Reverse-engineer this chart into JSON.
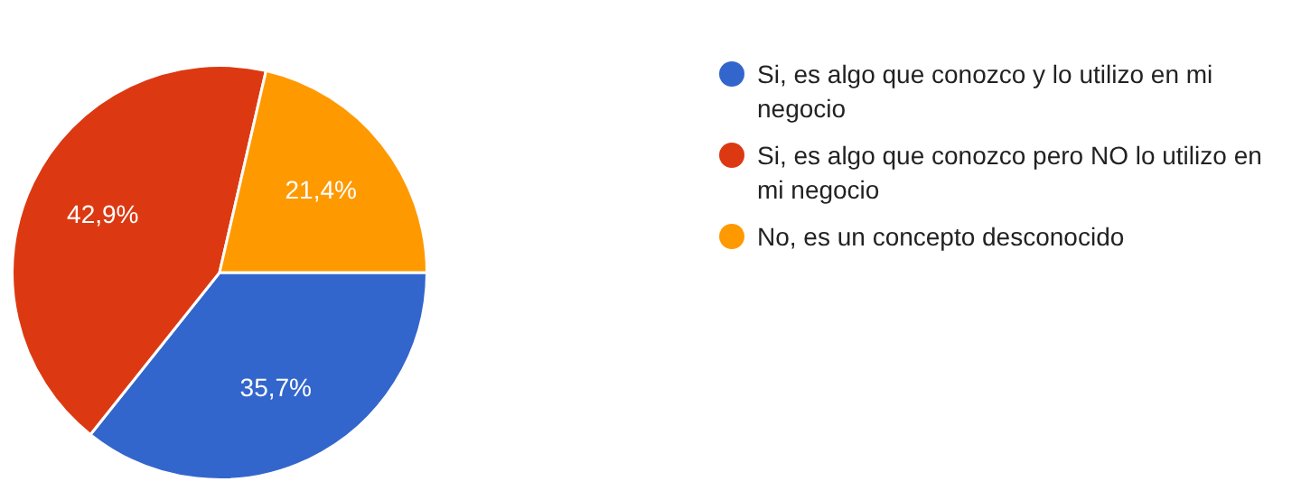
{
  "chart_data": {
    "type": "pie",
    "categories": [
      "Si, es algo que conozco y lo utilizo en mi negocio",
      "Si, es algo que conozco pero NO lo utilizo en mi negocio",
      "No, es un concepto desconocido"
    ],
    "values": [
      35.7,
      42.9,
      21.4
    ],
    "colors": [
      "#3366cc",
      "#dc3912",
      "#ff9900"
    ],
    "value_labels": [
      "35,7%",
      "42,9%",
      "21,4%"
    ],
    "legend": "right"
  }
}
